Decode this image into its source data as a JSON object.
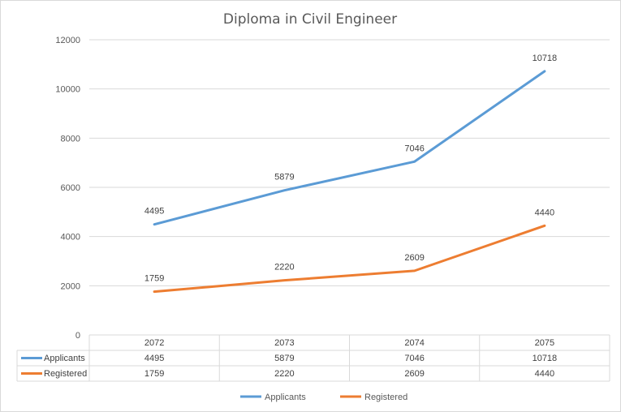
{
  "chart_data": {
    "type": "line",
    "title": "Diploma in Civil Engineer",
    "categories": [
      "2072",
      "2073",
      "2074",
      "2075"
    ],
    "ylim": [
      0,
      12000
    ],
    "yticks": [
      0,
      2000,
      4000,
      6000,
      8000,
      10000,
      12000
    ],
    "grid": true,
    "legend_position": "bottom",
    "data_table": true,
    "series": [
      {
        "name": "Applicants",
        "color": "#5b9bd5",
        "values": [
          4495,
          5879,
          7046,
          10718
        ]
      },
      {
        "name": "Registered",
        "color": "#ed7d31",
        "values": [
          1759,
          2220,
          2609,
          4440
        ]
      }
    ]
  }
}
